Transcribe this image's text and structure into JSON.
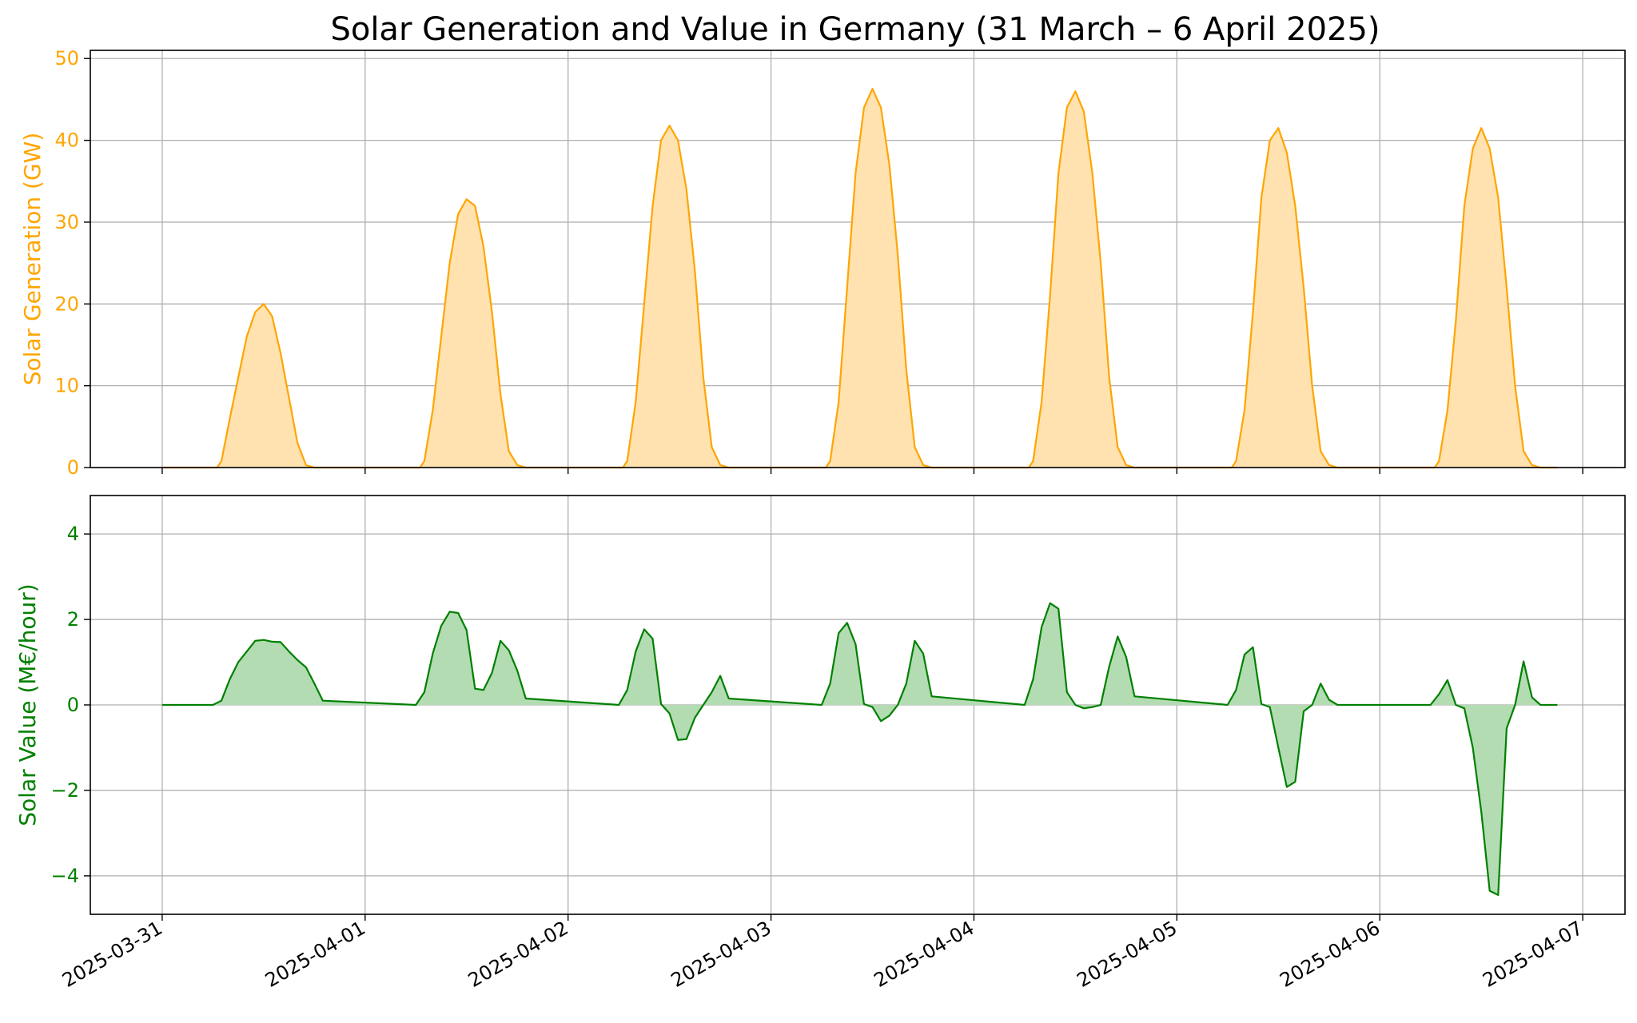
{
  "chart_data": {
    "type": "area",
    "title": "Solar Generation and Value in Germany (31 March – 6 April 2025)",
    "xlim": [
      "2025-03-30T15:30",
      "2025-04-07T05:00"
    ],
    "xticks": [
      "2025-03-31",
      "2025-04-01",
      "2025-04-02",
      "2025-04-03",
      "2025-04-04",
      "2025-04-05",
      "2025-04-06",
      "2025-04-07"
    ],
    "grid": true,
    "panels": [
      {
        "name": "generation",
        "ylabel": "Solar Generation (GW)",
        "ylim": [
          0,
          51
        ],
        "yticks": [
          0,
          10,
          20,
          30,
          40,
          50
        ],
        "line_color": "#ffa500",
        "fill_color": "#ffe2b0",
        "label_color": "#ffa500",
        "series": [
          {
            "x": [
              "2025-03-31T00:00",
              "2025-03-31T06:30",
              "2025-03-31T07:00",
              "2025-03-31T08:00",
              "2025-03-31T09:00",
              "2025-03-31T10:00",
              "2025-03-31T11:00",
              "2025-03-31T12:00",
              "2025-03-31T13:00",
              "2025-03-31T14:00",
              "2025-03-31T15:00",
              "2025-03-31T16:00",
              "2025-03-31T17:00",
              "2025-03-31T18:00",
              "2025-03-31T19:00",
              "2025-03-31T19:30",
              "2025-04-01T06:30",
              "2025-04-01T07:00",
              "2025-04-01T08:00",
              "2025-04-01T09:00",
              "2025-04-01T10:00",
              "2025-04-01T11:00",
              "2025-04-01T12:00",
              "2025-04-01T13:00",
              "2025-04-01T14:00",
              "2025-04-01T15:00",
              "2025-04-01T16:00",
              "2025-04-01T17:00",
              "2025-04-01T18:00",
              "2025-04-01T19:00",
              "2025-04-01T19:30",
              "2025-04-02T06:30",
              "2025-04-02T07:00",
              "2025-04-02T08:00",
              "2025-04-02T09:00",
              "2025-04-02T10:00",
              "2025-04-02T11:00",
              "2025-04-02T12:00",
              "2025-04-02T13:00",
              "2025-04-02T14:00",
              "2025-04-02T15:00",
              "2025-04-02T16:00",
              "2025-04-02T17:00",
              "2025-04-02T18:00",
              "2025-04-02T19:00",
              "2025-04-02T19:30",
              "2025-04-03T06:30",
              "2025-04-03T07:00",
              "2025-04-03T08:00",
              "2025-04-03T09:00",
              "2025-04-03T10:00",
              "2025-04-03T11:00",
              "2025-04-03T12:00",
              "2025-04-03T13:00",
              "2025-04-03T14:00",
              "2025-04-03T15:00",
              "2025-04-03T16:00",
              "2025-04-03T17:00",
              "2025-04-03T18:00",
              "2025-04-03T19:00",
              "2025-04-03T19:30",
              "2025-04-04T06:30",
              "2025-04-04T07:00",
              "2025-04-04T08:00",
              "2025-04-04T09:00",
              "2025-04-04T10:00",
              "2025-04-04T11:00",
              "2025-04-04T12:00",
              "2025-04-04T13:00",
              "2025-04-04T14:00",
              "2025-04-04T15:00",
              "2025-04-04T16:00",
              "2025-04-04T17:00",
              "2025-04-04T18:00",
              "2025-04-04T19:00",
              "2025-04-04T19:30",
              "2025-04-05T06:30",
              "2025-04-05T07:00",
              "2025-04-05T08:00",
              "2025-04-05T09:00",
              "2025-04-05T10:00",
              "2025-04-05T11:00",
              "2025-04-05T12:00",
              "2025-04-05T13:00",
              "2025-04-05T14:00",
              "2025-04-05T15:00",
              "2025-04-05T16:00",
              "2025-04-05T17:00",
              "2025-04-05T18:00",
              "2025-04-05T19:00",
              "2025-04-05T19:30",
              "2025-04-06T06:30",
              "2025-04-06T07:00",
              "2025-04-06T08:00",
              "2025-04-06T09:00",
              "2025-04-06T10:00",
              "2025-04-06T11:00",
              "2025-04-06T12:00",
              "2025-04-06T13:00",
              "2025-04-06T14:00",
              "2025-04-06T15:00",
              "2025-04-06T16:00",
              "2025-04-06T17:00",
              "2025-04-06T18:00",
              "2025-04-06T19:00",
              "2025-04-06T19:30",
              "2025-04-06T21:00"
            ],
            "y": [
              0,
              0,
              0.8,
              6,
              11,
              16,
              19,
              20,
              18.5,
              14,
              8.5,
              3,
              0.3,
              0,
              0,
              0,
              0,
              0.8,
              7,
              16,
              25,
              31,
              32.8,
              32,
              27,
              19,
              9,
              2,
              0.3,
              0,
              0,
              0,
              0.8,
              8,
              20,
              32,
              40,
              41.8,
              40,
              34,
              24,
              11,
              2.5,
              0.3,
              0,
              0,
              0,
              0.8,
              8,
              22,
              36,
              44,
              46.3,
              44,
              37,
              26,
              12,
              2.5,
              0.3,
              0,
              0,
              0,
              0.8,
              8,
              21,
              36,
              44,
              46,
              43.5,
              36,
              25,
              11,
              2.5,
              0.3,
              0,
              0,
              0,
              0.8,
              7,
              19,
              33,
              40,
              41.5,
              38.5,
              32,
              22,
              10,
              2,
              0.3,
              0,
              0,
              0,
              0.8,
              7,
              18,
              32,
              39,
              41.5,
              39,
              33,
              22,
              10,
              2,
              0.3,
              0,
              0,
              0
            ]
          }
        ]
      },
      {
        "name": "value",
        "ylabel": "Solar Value (M€/hour)",
        "ylim": [
          -4.9,
          4.9
        ],
        "yticks": [
          -4,
          -2,
          0,
          2,
          4
        ],
        "line_color": "#008000",
        "fill_color": "#b3dcb3",
        "label_color": "#008000",
        "series": [
          {
            "x": [
              "2025-03-31T00:00",
              "2025-03-31T06:00",
              "2025-03-31T07:00",
              "2025-03-31T08:00",
              "2025-03-31T09:00",
              "2025-03-31T10:00",
              "2025-03-31T11:00",
              "2025-03-31T12:00",
              "2025-03-31T13:00",
              "2025-03-31T14:00",
              "2025-03-31T15:00",
              "2025-03-31T16:00",
              "2025-03-31T17:00",
              "2025-03-31T18:00",
              "2025-03-31T19:00",
              "2025-04-01T06:00",
              "2025-04-01T07:00",
              "2025-04-01T08:00",
              "2025-04-01T09:00",
              "2025-04-01T10:00",
              "2025-04-01T11:00",
              "2025-04-01T12:00",
              "2025-04-01T13:00",
              "2025-04-01T14:00",
              "2025-04-01T15:00",
              "2025-04-01T16:00",
              "2025-04-01T17:00",
              "2025-04-01T18:00",
              "2025-04-01T19:00",
              "2025-04-02T06:00",
              "2025-04-02T07:00",
              "2025-04-02T08:00",
              "2025-04-02T09:00",
              "2025-04-02T10:00",
              "2025-04-02T11:00",
              "2025-04-02T12:00",
              "2025-04-02T13:00",
              "2025-04-02T14:00",
              "2025-04-02T15:00",
              "2025-04-02T16:00",
              "2025-04-02T17:00",
              "2025-04-02T18:00",
              "2025-04-02T19:00",
              "2025-04-03T06:00",
              "2025-04-03T07:00",
              "2025-04-03T08:00",
              "2025-04-03T09:00",
              "2025-04-03T10:00",
              "2025-04-03T11:00",
              "2025-04-03T12:00",
              "2025-04-03T13:00",
              "2025-04-03T14:00",
              "2025-04-03T15:00",
              "2025-04-03T16:00",
              "2025-04-03T17:00",
              "2025-04-03T18:00",
              "2025-04-03T19:00",
              "2025-04-04T06:00",
              "2025-04-04T07:00",
              "2025-04-04T08:00",
              "2025-04-04T09:00",
              "2025-04-04T10:00",
              "2025-04-04T11:00",
              "2025-04-04T12:00",
              "2025-04-04T13:00",
              "2025-04-04T14:00",
              "2025-04-04T15:00",
              "2025-04-04T16:00",
              "2025-04-04T17:00",
              "2025-04-04T18:00",
              "2025-04-04T19:00",
              "2025-04-05T06:00",
              "2025-04-05T07:00",
              "2025-04-05T08:00",
              "2025-04-05T09:00",
              "2025-04-05T10:00",
              "2025-04-05T11:00",
              "2025-04-05T12:00",
              "2025-04-05T13:00",
              "2025-04-05T14:00",
              "2025-04-05T15:00",
              "2025-04-05T16:00",
              "2025-04-05T17:00",
              "2025-04-05T18:00",
              "2025-04-05T19:00",
              "2025-04-06T06:00",
              "2025-04-06T07:00",
              "2025-04-06T08:00",
              "2025-04-06T09:00",
              "2025-04-06T10:00",
              "2025-04-06T11:00",
              "2025-04-06T12:00",
              "2025-04-06T13:00",
              "2025-04-06T14:00",
              "2025-04-06T15:00",
              "2025-04-06T16:00",
              "2025-04-06T17:00",
              "2025-04-06T18:00",
              "2025-04-06T19:00",
              "2025-04-06T21:00"
            ],
            "y": [
              0,
              0,
              0.1,
              0.6,
              1.0,
              1.25,
              1.5,
              1.52,
              1.48,
              1.47,
              1.25,
              1.05,
              0.88,
              0.5,
              0.1,
              0,
              0.3,
              1.2,
              1.85,
              2.18,
              2.15,
              1.75,
              0.38,
              0.35,
              0.75,
              1.5,
              1.28,
              0.8,
              0.15,
              0,
              0.35,
              1.25,
              1.77,
              1.55,
              0.02,
              -0.2,
              -0.82,
              -0.8,
              -0.3,
              0.0,
              0.3,
              0.68,
              0.15,
              0,
              0.5,
              1.68,
              1.92,
              1.42,
              0.02,
              -0.05,
              -0.38,
              -0.25,
              0.0,
              0.5,
              1.5,
              1.2,
              0.2,
              0,
              0.6,
              1.82,
              2.38,
              2.25,
              0.3,
              0.0,
              -0.08,
              -0.05,
              0.0,
              0.9,
              1.6,
              1.12,
              0.2,
              0,
              0.35,
              1.18,
              1.35,
              0.02,
              -0.05,
              -1.0,
              -1.92,
              -1.8,
              -0.15,
              0.0,
              0.5,
              0.12,
              0.0,
              0,
              0.25,
              0.58,
              0.0,
              -0.08,
              -1.0,
              -2.5,
              -4.35,
              -4.45,
              -0.55,
              0.0,
              1.02,
              0.18,
              0.0,
              0
            ]
          }
        ]
      }
    ]
  }
}
